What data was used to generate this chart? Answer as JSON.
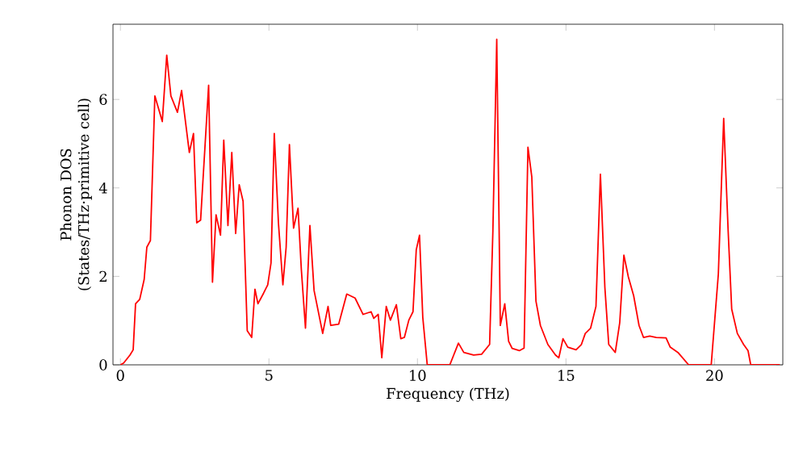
{
  "chart_data": {
    "type": "line",
    "xlabel": "Frequency (THz)",
    "ylabel": "Phonon DOS\n(States/THz·primitive cell)",
    "xlim": [
      -0.25,
      22.3
    ],
    "ylim": [
      0,
      7.7
    ],
    "xticks": [
      0,
      5,
      10,
      15,
      20
    ],
    "yticks": [
      0,
      2,
      4,
      6
    ],
    "grid": false,
    "marker": "none",
    "line_style": "solid",
    "series": [
      {
        "color": "#ff0000",
        "x": [
          0,
          0.11,
          0.32,
          0.43,
          0.51,
          0.65,
          0.8,
          0.89,
          1.01,
          1.16,
          1.41,
          1.56,
          1.7,
          1.92,
          2.06,
          2.32,
          2.46,
          2.57,
          2.7,
          2.97,
          3.1,
          3.22,
          3.37,
          3.48,
          3.62,
          3.75,
          3.88,
          4.0,
          4.13,
          4.27,
          4.42,
          4.53,
          4.63,
          4.82,
          4.96,
          5.07,
          5.18,
          5.32,
          5.47,
          5.58,
          5.69,
          5.83,
          5.98,
          6.09,
          6.23,
          6.38,
          6.52,
          6.81,
          6.99,
          7.08,
          7.35,
          7.62,
          7.9,
          8.17,
          8.44,
          8.53,
          8.68,
          8.8,
          8.95,
          9.09,
          9.29,
          9.44,
          9.56,
          9.71,
          9.85,
          9.96,
          10.07,
          10.18,
          10.33,
          11.09,
          11.38,
          11.56,
          11.89,
          12.16,
          12.43,
          12.54,
          12.67,
          12.79,
          12.94,
          13.07,
          13.19,
          13.43,
          13.59,
          13.72,
          13.85,
          13.99,
          14.14,
          14.39,
          14.65,
          14.76,
          14.9,
          15.06,
          15.34,
          15.52,
          15.65,
          15.83,
          16.01,
          16.16,
          16.31,
          16.44,
          16.66,
          16.81,
          16.95,
          17.1,
          17.28,
          17.46,
          17.61,
          17.82,
          18.04,
          18.37,
          18.51,
          18.77,
          19.13,
          19.89,
          20.13,
          20.31,
          20.46,
          20.58,
          20.77,
          20.98,
          21.13,
          21.22,
          22.2
        ],
        "values": [
          0,
          0.04,
          0.22,
          0.34,
          1.38,
          1.48,
          1.93,
          2.66,
          2.81,
          6.08,
          5.5,
          7.0,
          6.08,
          5.71,
          6.2,
          4.8,
          5.23,
          3.21,
          3.27,
          6.32,
          1.87,
          3.39,
          2.93,
          5.08,
          3.15,
          4.8,
          2.97,
          4.07,
          3.7,
          0.77,
          0.62,
          1.71,
          1.38,
          1.62,
          1.81,
          2.3,
          5.23,
          3.21,
          1.81,
          2.66,
          4.98,
          3.09,
          3.54,
          2.17,
          0.83,
          3.15,
          1.68,
          0.71,
          1.32,
          0.89,
          0.92,
          1.6,
          1.51,
          1.14,
          1.2,
          1.05,
          1.14,
          0.16,
          1.32,
          1.01,
          1.36,
          0.59,
          0.62,
          1.01,
          1.2,
          2.6,
          2.93,
          1.07,
          0,
          0,
          0.49,
          0.28,
          0.22,
          0.24,
          0.46,
          3.03,
          7.36,
          0.89,
          1.38,
          0.53,
          0.37,
          0.32,
          0.38,
          4.92,
          4.25,
          1.44,
          0.89,
          0.46,
          0.22,
          0.16,
          0.59,
          0.4,
          0.34,
          0.46,
          0.71,
          0.83,
          1.32,
          4.31,
          1.75,
          0.46,
          0.28,
          0.95,
          2.48,
          1.99,
          1.56,
          0.89,
          0.62,
          0.65,
          0.62,
          0.61,
          0.4,
          0.28,
          0,
          0,
          2.05,
          5.57,
          3.03,
          1.26,
          0.71,
          0.46,
          0.32,
          0,
          0
        ]
      }
    ]
  }
}
